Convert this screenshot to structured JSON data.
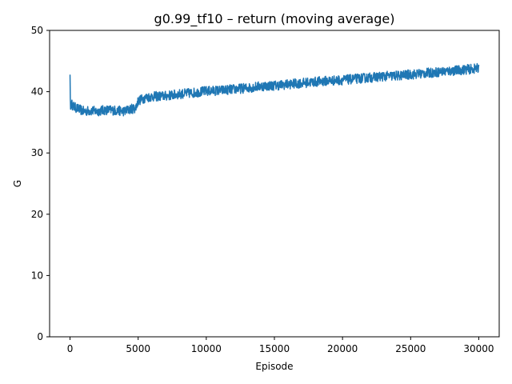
{
  "chart_data": {
    "type": "line",
    "title": "g0.99_tf10 – return (moving average)",
    "xlabel": "Episode",
    "ylabel": "G",
    "xlim": [
      -1500,
      31500
    ],
    "ylim": [
      0,
      50
    ],
    "xticks": [
      0,
      5000,
      10000,
      15000,
      20000,
      25000,
      30000
    ],
    "yticks": [
      0,
      10,
      20,
      30,
      40,
      50
    ],
    "grid": false,
    "legend": "none",
    "series": [
      {
        "color": "#1f77b4",
        "noise_amplitude": 0.8,
        "points": [
          [
            0,
            42.7
          ],
          [
            30,
            37.0
          ],
          [
            100,
            38.0
          ],
          [
            300,
            37.5
          ],
          [
            600,
            37.2
          ],
          [
            1000,
            36.8
          ],
          [
            1500,
            36.9
          ],
          [
            2000,
            36.8
          ],
          [
            2500,
            37.0
          ],
          [
            3000,
            37.0
          ],
          [
            3500,
            36.9
          ],
          [
            4000,
            36.8
          ],
          [
            4500,
            37.2
          ],
          [
            4800,
            37.3
          ],
          [
            5000,
            38.5
          ],
          [
            5500,
            39.0
          ],
          [
            6000,
            39.2
          ],
          [
            7000,
            39.3
          ],
          [
            8000,
            39.6
          ],
          [
            9000,
            39.8
          ],
          [
            10000,
            40.1
          ],
          [
            11000,
            40.2
          ],
          [
            12000,
            40.4
          ],
          [
            13000,
            40.6
          ],
          [
            14000,
            40.9
          ],
          [
            15000,
            41.0
          ],
          [
            16000,
            41.2
          ],
          [
            17000,
            41.4
          ],
          [
            18000,
            41.6
          ],
          [
            19000,
            41.8
          ],
          [
            20000,
            41.9
          ],
          [
            21000,
            42.1
          ],
          [
            22000,
            42.3
          ],
          [
            23000,
            42.5
          ],
          [
            24000,
            42.6
          ],
          [
            25000,
            42.8
          ],
          [
            26000,
            43.0
          ],
          [
            27000,
            43.2
          ],
          [
            28000,
            43.4
          ],
          [
            29000,
            43.6
          ],
          [
            30000,
            43.8
          ]
        ]
      }
    ]
  }
}
